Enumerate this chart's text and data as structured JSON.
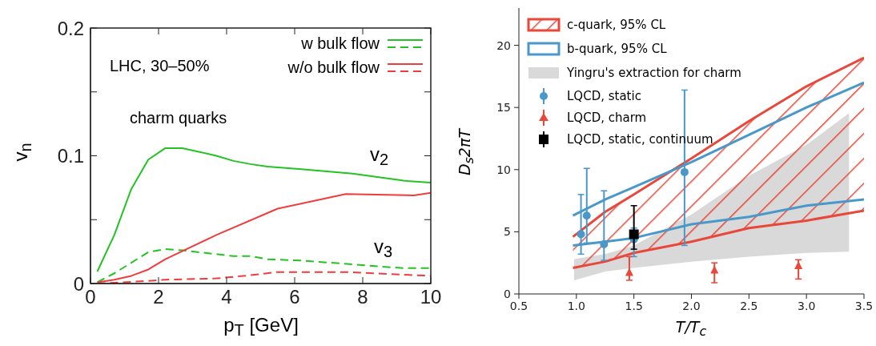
{
  "chart_data": [
    {
      "type": "line",
      "xlabel": "p$_{T}$ [GeV]",
      "ylabel": "v$_{n}$",
      "xlim": [
        0,
        10
      ],
      "ylim": [
        0,
        0.2
      ],
      "xticks": [
        0,
        2,
        4,
        6,
        8,
        10
      ],
      "yticks": [
        0,
        {
          "value": 0.05,
          "label": null
        },
        0.1,
        {
          "value": 0.15,
          "label": null
        },
        0.2
      ],
      "grid": false,
      "legend": "top right",
      "annotations": [
        "LHC, 30–50%",
        "charm quarks",
        "v$_{2}$",
        "v$_{3}$"
      ],
      "series": [
        {
          "name": "w bulk flow",
          "color": "#22c322",
          "line_style": "solid",
          "x": [
            0.2,
            0.7,
            1.2,
            1.7,
            2.2,
            2.7,
            3.7,
            4.2,
            4.7,
            5.2,
            6.2,
            7.7,
            9.2,
            10
          ],
          "values": [
            0.0094,
            0.038,
            0.074,
            0.097,
            0.106,
            0.106,
            0.1,
            0.096,
            0.0935,
            0.0915,
            0.0895,
            0.086,
            0.0805,
            0.079
          ]
        },
        {
          "color": "#22c322",
          "line_style": "dashed",
          "x": [
            0.2,
            0.7,
            1.7,
            2.2,
            2.7,
            3.7,
            4.2,
            4.7,
            5.2,
            6.2,
            7.7,
            9.2,
            10
          ],
          "values": [
            0.001,
            0.008,
            0.0246,
            0.027,
            0.026,
            0.023,
            0.0215,
            0.0215,
            0.019,
            0.018,
            0.015,
            0.012,
            0.012
          ]
        },
        {
          "name": "w/o bulk flow",
          "color": "#f03c3c",
          "line_style": "solid",
          "x": [
            0.2,
            0.7,
            1.2,
            1.7,
            2.2,
            3.7,
            5.5,
            7.5,
            9.5,
            10
          ],
          "values": [
            0.001,
            0.003,
            0.006,
            0.011,
            0.019,
            0.038,
            0.0586,
            0.07,
            0.069,
            0.071
          ]
        },
        {
          "color": "#f03c3c",
          "line_style": "dashed",
          "x": [
            0.2,
            1.7,
            2.2,
            3.7,
            4.7,
            5.5,
            7.5,
            10
          ],
          "values": [
            0,
            0.002,
            0.003,
            0.004,
            0.0065,
            0.009,
            0.009,
            0.006
          ]
        }
      ]
    },
    {
      "type": "scatter",
      "xlabel": "T/T$_{c}$",
      "ylabel": "D$_{s}$2πT",
      "xlim": [
        0.5,
        3.5
      ],
      "ylim": [
        0,
        23
      ],
      "xticks": [
        {
          "value": 0.5,
          "label": "0.5"
        },
        {
          "value": 1,
          "label": "1.0"
        },
        {
          "value": 1.5,
          "label": "1.5"
        },
        {
          "value": 2,
          "label": "2.0"
        },
        {
          "value": 2.5,
          "label": "2.5"
        },
        {
          "value": 3,
          "label": "3.0"
        },
        {
          "value": 3.5,
          "label": "3.5"
        }
      ],
      "yticks": [
        0,
        5,
        10,
        15,
        20
      ],
      "grid": false,
      "legend": "top left",
      "series": [
        {
          "type": "line",
          "name": "c-quark, 95% CL",
          "color": "#e8473a",
          "x": [
            0.97,
            1.25,
            1.5,
            2.0,
            2.5,
            3.0,
            3.5
          ],
          "values": [
            null,
            null,
            null,
            null,
            null,
            null,
            null
          ],
          "lower": [
            2.1,
            2.6,
            3.3,
            4.2,
            5.3,
            5.9,
            6.7
          ],
          "upper": [
            4.6,
            6.6,
            8.0,
            10.9,
            13.9,
            16.7,
            19.0
          ]
        },
        {
          "type": "line",
          "color": "#e8473a",
          "x": [
            0.97,
            1.25,
            1.5,
            2.0,
            2.5,
            3.0,
            3.5
          ],
          "values": [
            4.6,
            6.6,
            8.0,
            10.9,
            13.9,
            16.7,
            19.0
          ]
        },
        {
          "type": "line",
          "color": "#e8473a",
          "x": [
            0.97,
            1.25,
            1.5,
            2.0,
            2.5,
            3.0,
            3.5
          ],
          "values": [
            2.1,
            2.6,
            3.3,
            4.2,
            5.3,
            5.9,
            6.7
          ]
        },
        {
          "type": "line",
          "name": "b-quark, 95% CL",
          "color": "#4a98c9",
          "x": [
            0.97,
            1.25,
            1.5,
            2.0,
            2.5,
            3.0,
            3.5
          ],
          "values": [
            6.3,
            7.6,
            8.6,
            10.6,
            12.8,
            15.0,
            17.0
          ]
        },
        {
          "type": "line",
          "color": "#4a98c9",
          "x": [
            0.97,
            1.25,
            1.5,
            2.0,
            2.5,
            3.0,
            3.5
          ],
          "values": [
            3.9,
            4.2,
            4.5,
            5.6,
            6.2,
            7.1,
            7.6
          ]
        },
        {
          "type": "line",
          "name": "Yingru's extraction for charm",
          "color": "#d9d9d9",
          "x": [
            0.98,
            1.25,
            1.5,
            2.0,
            2.5,
            3.0,
            3.37
          ],
          "values": [
            null,
            null,
            null,
            null,
            null,
            null,
            null
          ],
          "lower": [
            1.1,
            1.8,
            2.1,
            2.6,
            3.0,
            3.3,
            3.4
          ],
          "upper": [
            2.8,
            3.2,
            3.9,
            6.4,
            9.5,
            12.0,
            14.55
          ]
        },
        {
          "name": "LQCD, static",
          "color": "#4a98c9",
          "marker": "circle",
          "x": [
            1.04,
            1.09,
            1.24,
            1.5,
            1.94
          ],
          "values": [
            4.8,
            6.3,
            4.0,
            4.4,
            9.8
          ],
          "errors": [
            [
              3.2,
              8.0
            ],
            [
              4.1,
              10.1
            ],
            [
              2.7,
              8.3
            ],
            [
              3.0,
              5.3
            ],
            [
              3.9,
              16.4
            ]
          ]
        },
        {
          "name": "LQCD, charm",
          "color": "#e8473a",
          "marker": "triangle",
          "x": [
            1.46,
            2.2,
            2.93
          ],
          "values": [
            1.7,
            1.9,
            2.25
          ],
          "errors": [
            [
              1.1,
              3.0
            ],
            [
              0.9,
              2.5
            ],
            [
              1.2,
              2.75
            ]
          ]
        },
        {
          "name": "LQCD, static, continuum",
          "color": "#000000",
          "marker": "square",
          "x": [
            1.5
          ],
          "values": [
            4.8
          ],
          "errors": [
            [
              3.6,
              7.1
            ]
          ]
        }
      ]
    }
  ]
}
